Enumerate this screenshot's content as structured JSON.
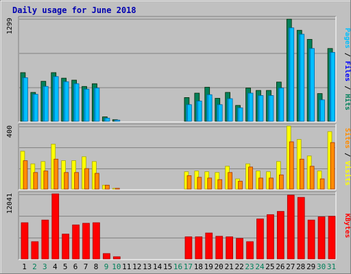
{
  "title": "Daily usage for June 2018",
  "colors": {
    "background": "#c0c0c0",
    "title": "#0000b0",
    "hits": "#00805a",
    "files": "#00bfff",
    "pages": "#00bfff",
    "visits": "#ffff00",
    "sites": "#ff8c00",
    "kbytes": "#ff0000",
    "weekend": "#00805a"
  },
  "chart_data": [
    {
      "type": "bar",
      "title": "Daily usage for June 2018",
      "categories": [
        "1",
        "2",
        "3",
        "4",
        "5",
        "6",
        "7",
        "8",
        "9",
        "10",
        "11",
        "12",
        "13",
        "14",
        "15",
        "16",
        "17",
        "18",
        "19",
        "20",
        "21",
        "22",
        "23",
        "24",
        "25",
        "26",
        "27",
        "28",
        "29",
        "30",
        "31"
      ],
      "weekend_days": [
        "2",
        "3",
        "9",
        "10",
        "16",
        "17",
        "23",
        "24",
        "30",
        "31"
      ],
      "ymax_label": "1299",
      "ylim": [
        0,
        1299
      ],
      "axis_title": [
        "Pages",
        "Files",
        "Hits"
      ],
      "series": [
        {
          "name": "Hits",
          "values": [
            615,
            365,
            505,
            615,
            545,
            520,
            440,
            475,
            55,
            20,
            0,
            0,
            0,
            0,
            0,
            0,
            300,
            355,
            430,
            290,
            365,
            200,
            420,
            390,
            390,
            495,
            1290,
            1150,
            1035,
            350,
            920
          ]
        },
        {
          "name": "Files",
          "values": [
            550,
            340,
            440,
            565,
            500,
            475,
            405,
            420,
            40,
            15,
            0,
            0,
            0,
            0,
            0,
            0,
            210,
            255,
            335,
            210,
            285,
            170,
            355,
            325,
            325,
            420,
            1180,
            1100,
            920,
            270,
            870
          ]
        },
        {
          "name": "Pages",
          "values": [
            550,
            340,
            440,
            565,
            500,
            475,
            405,
            420,
            40,
            15,
            0,
            0,
            0,
            0,
            0,
            0,
            210,
            255,
            335,
            210,
            285,
            170,
            355,
            325,
            325,
            420,
            1180,
            1100,
            920,
            270,
            870
          ]
        }
      ]
    },
    {
      "type": "bar",
      "categories": [
        "1",
        "2",
        "3",
        "4",
        "5",
        "6",
        "7",
        "8",
        "9",
        "10",
        "11",
        "12",
        "13",
        "14",
        "15",
        "16",
        "17",
        "18",
        "19",
        "20",
        "21",
        "22",
        "23",
        "24",
        "25",
        "26",
        "27",
        "28",
        "29",
        "30",
        "31"
      ],
      "ymax_label": "400",
      "ylim": [
        0,
        400
      ],
      "axis_title": [
        "Sites",
        "Visits"
      ],
      "series": [
        {
          "name": "Visits",
          "values": [
            240,
            160,
            175,
            285,
            180,
            180,
            205,
            175,
            25,
            5,
            0,
            0,
            0,
            0,
            0,
            0,
            110,
            115,
            110,
            105,
            145,
            65,
            160,
            115,
            110,
            175,
            400,
            315,
            210,
            115,
            365
          ]
        },
        {
          "name": "Sites",
          "values": [
            180,
            105,
            115,
            190,
            105,
            105,
            130,
            100,
            25,
            5,
            0,
            0,
            0,
            0,
            0,
            0,
            85,
            75,
            70,
            60,
            105,
            50,
            140,
            70,
            70,
            90,
            300,
            190,
            145,
            65,
            295
          ]
        }
      ]
    },
    {
      "type": "bar",
      "categories": [
        "1",
        "2",
        "3",
        "4",
        "5",
        "6",
        "7",
        "8",
        "9",
        "10",
        "11",
        "12",
        "13",
        "14",
        "15",
        "16",
        "17",
        "18",
        "19",
        "20",
        "21",
        "22",
        "23",
        "24",
        "25",
        "26",
        "27",
        "28",
        "29",
        "30",
        "31"
      ],
      "ymax_label": "12041",
      "ylim": [
        0,
        12041
      ],
      "axis_title": [
        "KBytes"
      ],
      "series": [
        {
          "name": "KBytes",
          "values": [
            6700,
            3200,
            7200,
            12041,
            4600,
            6300,
            6600,
            6700,
            1000,
            400,
            0,
            0,
            0,
            0,
            0,
            0,
            4100,
            4100,
            4800,
            4200,
            4100,
            3800,
            3200,
            7400,
            8200,
            8800,
            11800,
            11400,
            7200,
            7800,
            7900
          ]
        }
      ]
    }
  ]
}
